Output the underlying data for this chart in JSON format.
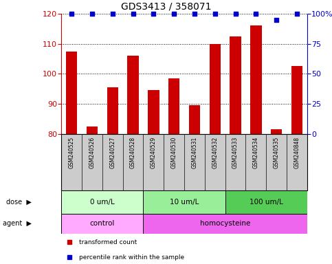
{
  "title": "GDS3413 / 358071",
  "samples": [
    "GSM240525",
    "GSM240526",
    "GSM240527",
    "GSM240528",
    "GSM240529",
    "GSM240530",
    "GSM240531",
    "GSM240532",
    "GSM240533",
    "GSM240534",
    "GSM240535",
    "GSM240848"
  ],
  "transformed_counts": [
    107.5,
    82.5,
    95.5,
    106.0,
    94.5,
    98.5,
    89.5,
    110.0,
    112.5,
    116.0,
    81.5,
    102.5
  ],
  "percentile_ranks": [
    100,
    100,
    100,
    100,
    100,
    100,
    100,
    100,
    100,
    100,
    95,
    100
  ],
  "bar_color": "#cc0000",
  "dot_color": "#0000cc",
  "ylim_left": [
    80,
    120
  ],
  "yticks_left": [
    80,
    90,
    100,
    110,
    120
  ],
  "ylim_right": [
    0,
    100
  ],
  "yticks_right": [
    0,
    25,
    50,
    75,
    100
  ],
  "dose_groups": [
    {
      "label": "0 um/L",
      "start": 0,
      "end": 4,
      "color": "#ccffcc"
    },
    {
      "label": "10 um/L",
      "start": 4,
      "end": 8,
      "color": "#99ee99"
    },
    {
      "label": "100 um/L",
      "start": 8,
      "end": 12,
      "color": "#55cc55"
    }
  ],
  "agent_groups": [
    {
      "label": "control",
      "start": 0,
      "end": 4,
      "color": "#ffaaff"
    },
    {
      "label": "homocysteine",
      "start": 4,
      "end": 12,
      "color": "#ee66ee"
    }
  ],
  "legend_items": [
    {
      "label": "transformed count",
      "color": "#cc0000"
    },
    {
      "label": "percentile rank within the sample",
      "color": "#0000cc"
    }
  ],
  "label_area_color": "#cccccc",
  "background_color": "#ffffff",
  "title_fontsize": 10,
  "tick_fontsize": 8,
  "sample_fontsize": 5.5,
  "annotation_fontsize": 7.5,
  "legend_fontsize": 6.5
}
